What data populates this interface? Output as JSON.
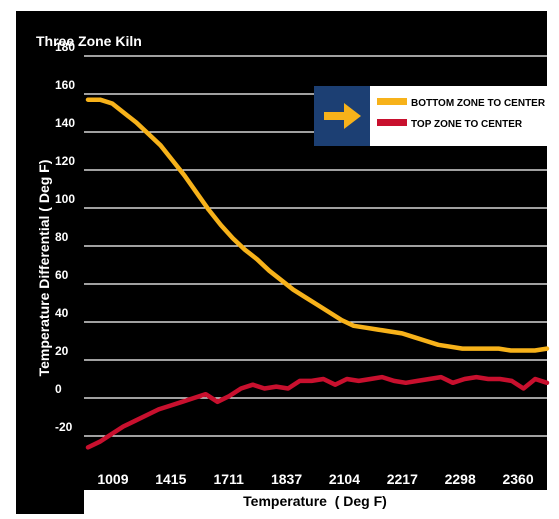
{
  "chart_data": {
    "type": "line",
    "title": "Three Zone Kiln",
    "xlabel": "Temperature  ( Deg F)",
    "ylabel": "Temperature Differential ( Deg F)",
    "ylim": [
      -30,
      190
    ],
    "yticks": [
      -20,
      0,
      20,
      40,
      60,
      80,
      100,
      120,
      140,
      160,
      180
    ],
    "xtick_labels": [
      "1009",
      "1415",
      "1711",
      "1837",
      "2104",
      "2217",
      "2298",
      "2360"
    ],
    "grid": true,
    "legend_position": "top-right",
    "series": [
      {
        "name": "BOTTOM ZONE TO CENTER",
        "color": "#f7b21a",
        "values": [
          157,
          157,
          155,
          150,
          145,
          139,
          133,
          125,
          117,
          108,
          99,
          91,
          84,
          78,
          73,
          67,
          62,
          57,
          53,
          49,
          45,
          41,
          38,
          37,
          36,
          35,
          34,
          32,
          30,
          28,
          27,
          26,
          26,
          26,
          26,
          25,
          25,
          25,
          26
        ]
      },
      {
        "name": "TOP ZONE TO CENTER",
        "color": "#c8102e",
        "values": [
          -26,
          -23,
          -19,
          -15,
          -12,
          -9,
          -6,
          -4,
          -2,
          0,
          2,
          -2,
          1,
          5,
          7,
          5,
          6,
          5,
          9,
          9,
          10,
          7,
          10,
          9,
          10,
          11,
          9,
          8,
          9,
          10,
          11,
          8,
          10,
          11,
          10,
          10,
          9,
          5,
          10,
          8
        ]
      }
    ]
  }
}
